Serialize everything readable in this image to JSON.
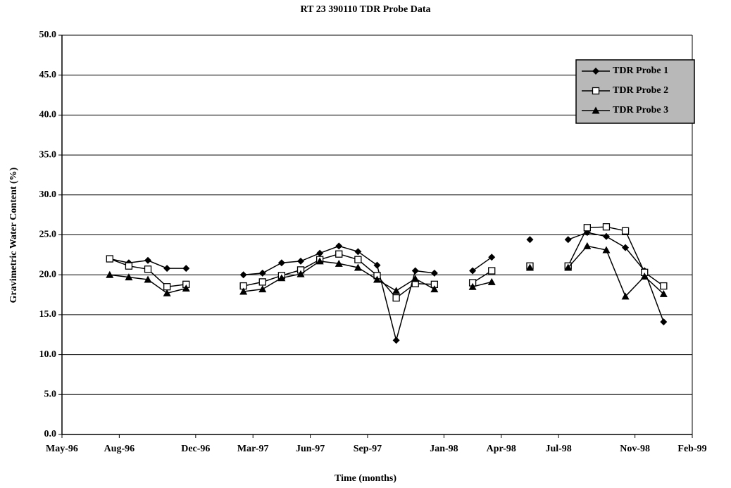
{
  "chart_data": {
    "type": "line",
    "title": "RT 23 390110 TDR Probe Data",
    "x_label": "Time (months)",
    "y_label": "Gravimetric Water Content (%)",
    "x": [
      "1996-07",
      "1996-08",
      "1996-09",
      "1996-10",
      "1996-11",
      "1996-12",
      "1997-01",
      "1997-02",
      "1997-03",
      "1997-04",
      "1997-05",
      "1997-06",
      "1997-07",
      "1997-08",
      "1997-09",
      "1997-10",
      "1997-11",
      "1997-12",
      "1998-01",
      "1998-02",
      "1998-03",
      "1998-04",
      "1998-05",
      "1998-06",
      "1998-07",
      "1998-08",
      "1998-09",
      "1998-10",
      "1998-11",
      "1998-12"
    ],
    "series": [
      {
        "name": "TDR Probe 1",
        "color": "#000000",
        "marker": "diamond",
        "values": [
          22.0,
          21.5,
          21.8,
          20.8,
          20.8,
          null,
          null,
          20.0,
          20.2,
          21.5,
          21.7,
          22.7,
          23.6,
          22.9,
          21.2,
          11.8,
          20.5,
          20.2,
          null,
          20.5,
          22.2,
          null,
          24.4,
          null,
          24.4,
          25.3,
          24.8,
          23.4,
          20.5,
          14.1
        ]
      },
      {
        "name": "TDR Probe 2",
        "color": "#000000",
        "marker": "square",
        "values": [
          22.0,
          21.1,
          20.7,
          18.5,
          18.8,
          null,
          null,
          18.6,
          19.1,
          19.9,
          20.6,
          21.9,
          22.6,
          21.9,
          19.9,
          17.1,
          18.9,
          18.8,
          null,
          19.0,
          20.5,
          null,
          21.1,
          null,
          21.1,
          25.9,
          26.0,
          25.5,
          20.3,
          18.6
        ]
      },
      {
        "name": "TDR Probe 3",
        "color": "#000000",
        "marker": "triangle",
        "values": [
          20.0,
          19.7,
          19.4,
          17.7,
          18.3,
          null,
          null,
          17.9,
          18.2,
          19.6,
          20.1,
          21.7,
          21.4,
          20.9,
          19.4,
          18.0,
          19.5,
          18.2,
          null,
          18.5,
          19.1,
          null,
          20.9,
          null,
          20.9,
          23.6,
          23.1,
          17.3,
          19.8,
          17.6
        ]
      }
    ],
    "xlim": [
      "1996-05",
      "1999-02"
    ],
    "xticks": [
      {
        "value": "1996-05",
        "label": "May-96"
      },
      {
        "value": "1996-08",
        "label": "Aug-96"
      },
      {
        "value": "1996-12",
        "label": "Dec-96"
      },
      {
        "value": "1997-03",
        "label": "Mar-97"
      },
      {
        "value": "1997-06",
        "label": "Jun-97"
      },
      {
        "value": "1997-09",
        "label": "Sep-97"
      },
      {
        "value": "1998-01",
        "label": "Jan-98"
      },
      {
        "value": "1998-04",
        "label": "Apr-98"
      },
      {
        "value": "1998-07",
        "label": "Jul-98"
      },
      {
        "value": "1998-11",
        "label": "Nov-98"
      },
      {
        "value": "1999-02",
        "label": "Feb-99"
      }
    ],
    "ylim": [
      0,
      50
    ],
    "yticks": [
      {
        "value": 0,
        "label": "0.0"
      },
      {
        "value": 5,
        "label": "5.0"
      },
      {
        "value": 10,
        "label": "10.0"
      },
      {
        "value": 15,
        "label": "15.0"
      },
      {
        "value": 20,
        "label": "20.0"
      },
      {
        "value": 25,
        "label": "25.0"
      },
      {
        "value": 30,
        "label": "30.0"
      },
      {
        "value": 35,
        "label": "35.0"
      },
      {
        "value": 40,
        "label": "40.0"
      },
      {
        "value": 45,
        "label": "45.0"
      },
      {
        "value": 50,
        "label": "50.0"
      }
    ],
    "grid": true,
    "legend": "upper right"
  }
}
